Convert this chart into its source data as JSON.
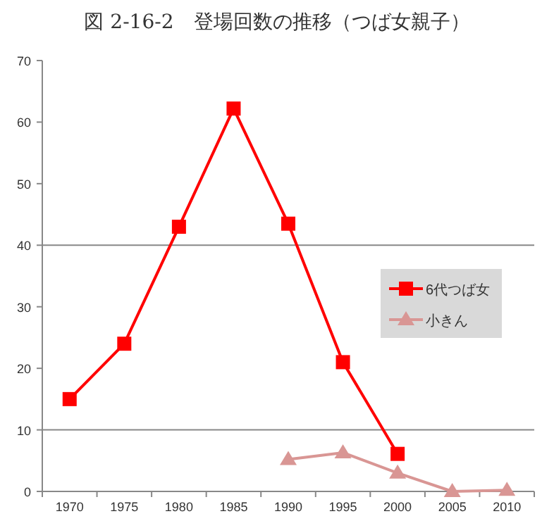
{
  "chart_data": {
    "type": "line",
    "title": "図 2-16-2　登場回数の推移（つば女親子）",
    "categories": [
      "1970",
      "1975",
      "1980",
      "1985",
      "1990",
      "1995",
      "2000",
      "2005",
      "2010"
    ],
    "series": [
      {
        "name": "6代つば女",
        "color": "#ff0000",
        "marker": "square",
        "values": [
          15,
          24,
          43,
          62.2,
          43.5,
          21,
          6.1,
          null,
          null
        ]
      },
      {
        "name": "小きん",
        "color": "#d99694",
        "marker": "triangle",
        "values": [
          null,
          null,
          null,
          null,
          5.2,
          6.3,
          3,
          0,
          0.2
        ]
      }
    ],
    "ylim": [
      0,
      70
    ],
    "yticks": [
      0,
      10,
      20,
      30,
      40,
      50,
      60,
      70
    ],
    "ref_lines": [
      {
        "axis": "y",
        "value": 10,
        "label": null,
        "color": "#888888"
      },
      {
        "axis": "y",
        "value": 40,
        "label": null,
        "color": "#888888"
      }
    ],
    "legend": "right",
    "grid": false,
    "line_style": "solid"
  }
}
